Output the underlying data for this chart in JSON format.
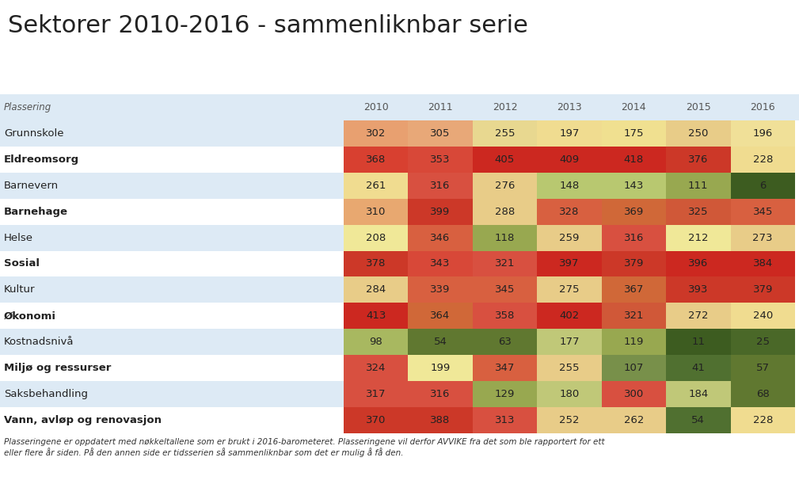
{
  "title": "Sektorer 2010-2016 - sammenliknbar serie",
  "header_row": [
    "Plassering",
    "2010",
    "2011",
    "2012",
    "2013",
    "2014",
    "2015",
    "2016"
  ],
  "rows": [
    "Grunnskole",
    "Eldreomsorg",
    "Barnevern",
    "Barnehage",
    "Helse",
    "Sosial",
    "Kultur",
    "Økonomi",
    "Kostnadsnivå",
    "Miljø og ressurser",
    "Saksbehandling",
    "Vann, avløp og renovasjon"
  ],
  "values": [
    [
      302,
      305,
      255,
      197,
      175,
      250,
      196
    ],
    [
      368,
      353,
      405,
      409,
      418,
      376,
      228
    ],
    [
      261,
      316,
      276,
      148,
      143,
      111,
      6
    ],
    [
      310,
      399,
      288,
      328,
      369,
      325,
      345
    ],
    [
      208,
      346,
      118,
      259,
      316,
      212,
      273
    ],
    [
      378,
      343,
      321,
      397,
      379,
      396,
      384
    ],
    [
      284,
      339,
      345,
      275,
      367,
      393,
      379
    ],
    [
      413,
      364,
      358,
      402,
      321,
      272,
      240
    ],
    [
      98,
      54,
      63,
      177,
      119,
      11,
      25
    ],
    [
      324,
      199,
      347,
      255,
      107,
      41,
      57
    ],
    [
      317,
      316,
      129,
      180,
      300,
      184,
      68
    ],
    [
      370,
      388,
      313,
      252,
      262,
      54,
      228
    ]
  ],
  "colors": [
    [
      "#E8A070",
      "#E8A878",
      "#E8D890",
      "#F0DC90",
      "#F0E090",
      "#E8CC88",
      "#F0E098"
    ],
    [
      "#D84030",
      "#D84838",
      "#CC2820",
      "#CC2820",
      "#CC2820",
      "#CC3828",
      "#F0DC90"
    ],
    [
      "#F0DC90",
      "#D85040",
      "#E8CC88",
      "#B8C870",
      "#B8C870",
      "#98A850",
      "#3D5C20"
    ],
    [
      "#E8A870",
      "#CC3828",
      "#E8CC88",
      "#D86040",
      "#D06838",
      "#D05838",
      "#D86040"
    ],
    [
      "#F0E898",
      "#D86040",
      "#98A850",
      "#E8CC88",
      "#D85040",
      "#F0E898",
      "#E8CC88"
    ],
    [
      "#CC3828",
      "#D84838",
      "#D85040",
      "#CC2820",
      "#CC3828",
      "#CC2820",
      "#CC2820"
    ],
    [
      "#E8CC88",
      "#D86040",
      "#D86040",
      "#E8CC88",
      "#D06838",
      "#CC3828",
      "#CC3828"
    ],
    [
      "#CC2820",
      "#D06838",
      "#D85040",
      "#CC2820",
      "#D05838",
      "#E8CC88",
      "#F0DC90"
    ],
    [
      "#A8B860",
      "#607830",
      "#607830",
      "#C0C878",
      "#98A850",
      "#3D5C20",
      "#4A6828"
    ],
    [
      "#D85040",
      "#F0E898",
      "#D86040",
      "#E8CC88",
      "#78904A",
      "#507030",
      "#607830"
    ],
    [
      "#D85040",
      "#D85040",
      "#98A850",
      "#C0C878",
      "#D85040",
      "#C0C878",
      "#607830"
    ],
    [
      "#CC3828",
      "#CC3828",
      "#D85040",
      "#E8CC88",
      "#E8CC88",
      "#507030",
      "#F0DC90"
    ]
  ],
  "footer": "Plasseringene er oppdatert med nøkkeltallene som er brukt i 2016-barometeret. Plasseringene vil derfor AVVIKE fra det som ble rapportert for ett\neller flere år siden. På den annen side er tidsserien så sammenliknbar som det er mulig å få den.",
  "bg_color": "#FFFFFF",
  "row_alt_colors": [
    "#DDEAF5",
    "#FFFFFF"
  ],
  "header_bg": "#DDEAF5",
  "col_label_color": "#555555",
  "text_color": "#333333"
}
